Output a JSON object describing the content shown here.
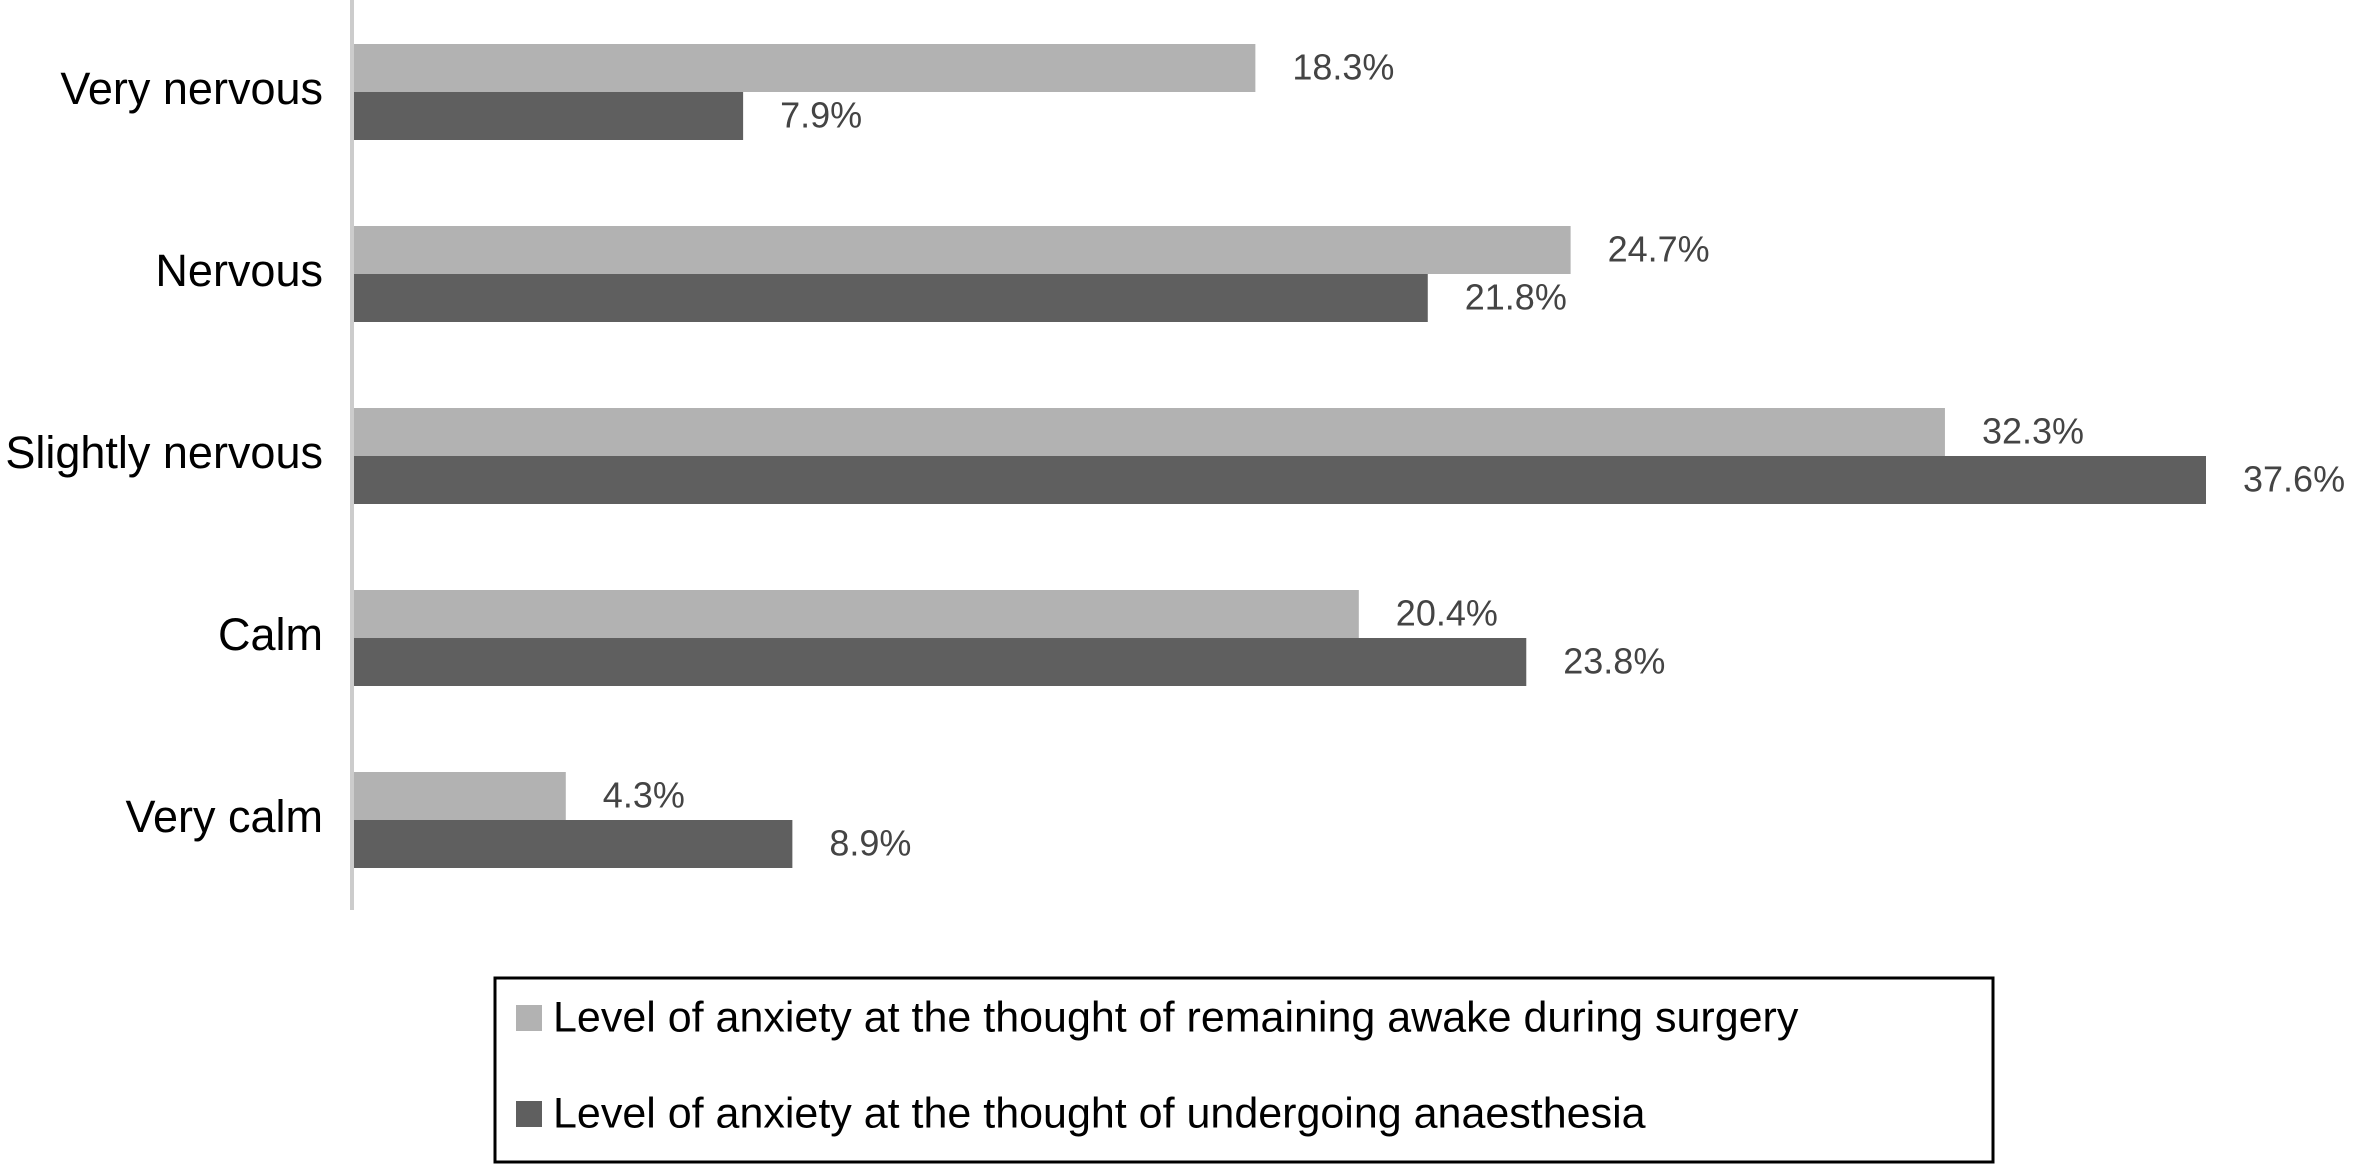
{
  "chart_data": {
    "type": "hbar",
    "categories": [
      "Very nervous",
      "Nervous",
      "Slightly nervous",
      "Calm",
      "Very calm"
    ],
    "series": [
      {
        "name": "Level of anxiety at the thought of remaining awake during surgery",
        "color": "#b2b2b2",
        "values": [
          18.3,
          24.7,
          32.3,
          20.4,
          4.3
        ],
        "value_labels": [
          "18.3%",
          "24.7%",
          "32.3%",
          "20.4%",
          "4.3%"
        ]
      },
      {
        "name": "Level of anxiety at the thought of undergoing anaesthesia",
        "color": "#5f5f5f",
        "values": [
          7.9,
          21.8,
          37.6,
          23.8,
          8.9
        ],
        "value_labels": [
          "7.9%",
          "21.8%",
          "37.6%",
          "23.8%",
          "8.9%"
        ]
      }
    ],
    "legend": "bottom"
  }
}
